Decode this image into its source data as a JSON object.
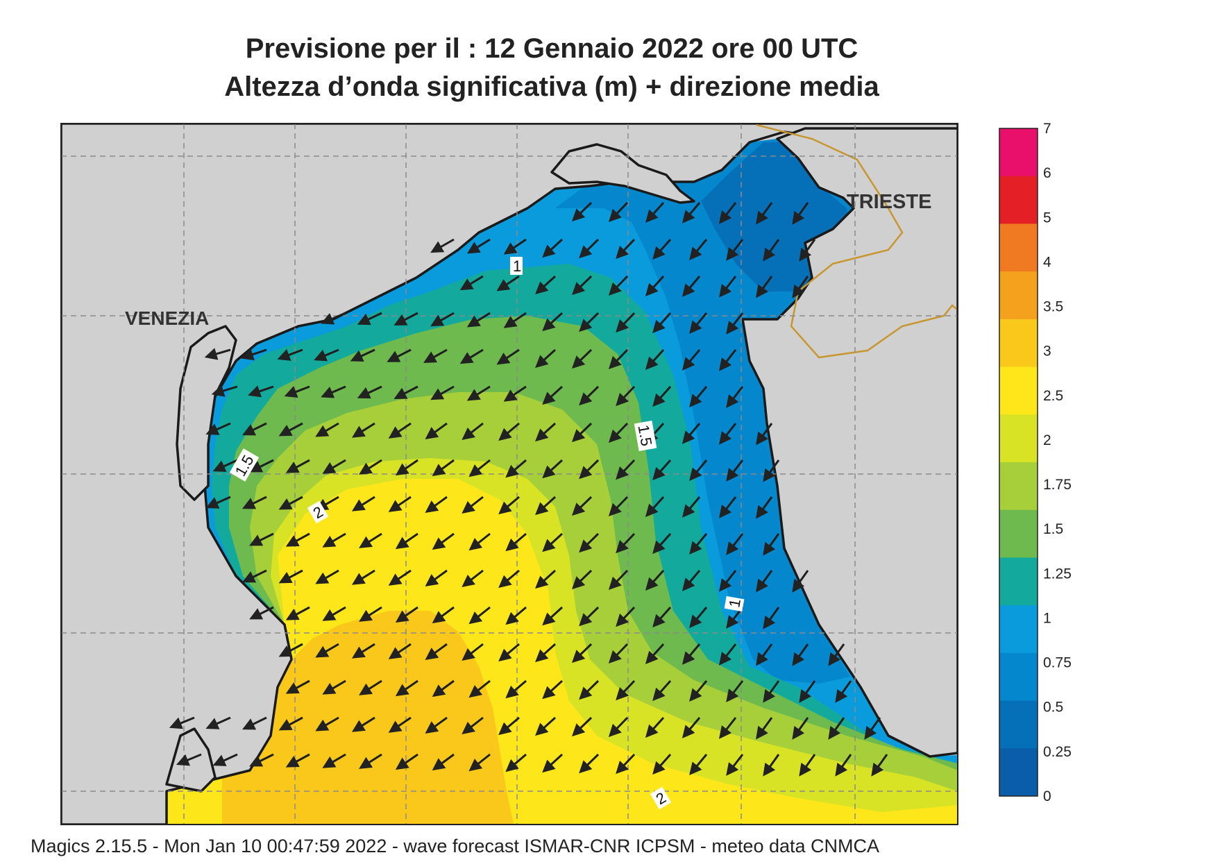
{
  "header": {
    "title_line1": "Previsione per il  :  12  Gennaio  2022   ore 00 UTC",
    "title_line2": "Altezza d’onda significativa (m) + direzione media"
  },
  "map": {
    "place_labels": [
      {
        "id": "venezia",
        "text": "VENEZIA"
      },
      {
        "id": "trieste",
        "text": "TRIESTE"
      }
    ],
    "contour_labels": [
      {
        "id": "c1a",
        "text": "1"
      },
      {
        "id": "c15a",
        "text": "1.5"
      },
      {
        "id": "c15b",
        "text": "1.5"
      },
      {
        "id": "c2a",
        "text": "2"
      },
      {
        "id": "c1b",
        "text": "1"
      },
      {
        "id": "c2b",
        "text": "2"
      }
    ],
    "wave_direction": "from north-east (arrows point south-west)",
    "colors": {
      "land": "#d0d0d0",
      "coast": "#222222",
      "border": "#c8962e",
      "grid": "#8a8a8a"
    }
  },
  "legend": {
    "ticks": [
      "7",
      "6",
      "5",
      "4",
      "3.5",
      "3",
      "2.5",
      "2",
      "1.75",
      "1.5",
      "1.25",
      "1",
      "0.75",
      "0.5",
      "0.25",
      "0"
    ],
    "colors": [
      "#e8106a",
      "#e42026",
      "#f07a22",
      "#f4a21e",
      "#f9c81a",
      "#fde71a",
      "#d8e325",
      "#a7cf3a",
      "#6eba4e",
      "#13aa9d",
      "#0a9bdc",
      "#0487cc",
      "#0570b8",
      "#0a5da8"
    ]
  },
  "footer": {
    "text": "Magics 2.15.5 - Mon Jan 10 00:47:59 2022 - wave forecast  ISMAR-CNR  ICPSM - meteo data   CNMCA"
  }
}
